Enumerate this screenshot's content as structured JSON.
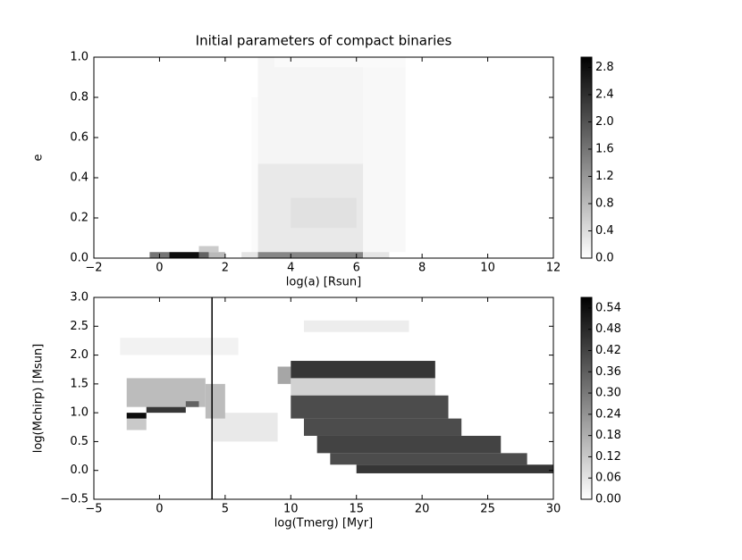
{
  "chart_data": [
    {
      "type": "heatmap",
      "title": "Initial parameters of compact binaries",
      "xlabel": "log(a) [Rsun]",
      "ylabel": "e",
      "xlim": [
        -2,
        12
      ],
      "ylim": [
        0,
        1
      ],
      "xticks": [
        {
          "value": -2,
          "label": "−2"
        },
        0,
        2,
        4,
        6,
        8,
        10,
        12
      ],
      "yticks": [
        {
          "value": 0,
          "label": "0.0"
        },
        0.2,
        0.4,
        0.6,
        0.8,
        {
          "value": 1,
          "label": "1.0"
        }
      ],
      "clim": [
        0,
        2.95
      ],
      "cticks": [
        {
          "value": 0,
          "label": "0.0"
        },
        0.4,
        0.8,
        1.2,
        1.6,
        {
          "value": 2,
          "label": "2.0"
        },
        2.4,
        2.8
      ],
      "cells": [
        {
          "x": [
            3,
            6.2
          ],
          "y": [
            0.47,
            1.0
          ],
          "v": 0.12
        },
        {
          "x": [
            6.2,
            7.5
          ],
          "y": [
            0.03,
            0.95
          ],
          "v": 0.08
        },
        {
          "x": [
            3.5,
            7.5
          ],
          "y": [
            0.95,
            1.0
          ],
          "v": 0.06
        },
        {
          "x": [
            2.8,
            3
          ],
          "y": [
            0.03,
            0.8
          ],
          "v": 0.05
        },
        {
          "x": [
            3,
            6.2
          ],
          "y": [
            0.03,
            0.47
          ],
          "v": 0.25
        },
        {
          "x": [
            4,
            6
          ],
          "y": [
            0.15,
            0.3
          ],
          "v": 0.35
        },
        {
          "x": [
            1.2,
            1.8
          ],
          "y": [
            0.03,
            0.06
          ],
          "v": 0.6
        },
        {
          "x": [
            -0.3,
            0.3
          ],
          "y": [
            0,
            0.03
          ],
          "v": 1.6
        },
        {
          "x": [
            0.3,
            1.2
          ],
          "y": [
            0,
            0.03
          ],
          "v": 2.8
        },
        {
          "x": [
            1.2,
            1.5
          ],
          "y": [
            0,
            0.03
          ],
          "v": 1.8
        },
        {
          "x": [
            1.5,
            2
          ],
          "y": [
            0,
            0.03
          ],
          "v": 0.8
        },
        {
          "x": [
            2.5,
            3
          ],
          "y": [
            0,
            0.03
          ],
          "v": 0.3
        },
        {
          "x": [
            3,
            6.2
          ],
          "y": [
            0,
            0.03
          ],
          "v": 1.4
        },
        {
          "x": [
            6.2,
            7
          ],
          "y": [
            0,
            0.03
          ],
          "v": 0.3
        }
      ]
    },
    {
      "type": "heatmap",
      "xlabel": "log(Tmerg) [Myr]",
      "ylabel": "log(Mchirp) [Msun]",
      "xlim": [
        -5,
        30
      ],
      "ylim": [
        -0.5,
        3
      ],
      "xticks": [
        {
          "value": -5,
          "label": "−5"
        },
        0,
        5,
        10,
        15,
        20,
        25,
        30
      ],
      "yticks": [
        {
          "value": -0.5,
          "label": "−0.5"
        },
        {
          "value": 0,
          "label": "0.0"
        },
        0.5,
        {
          "value": 1,
          "label": "1.0"
        },
        1.5,
        {
          "value": 2,
          "label": "2.0"
        },
        2.5,
        {
          "value": 3,
          "label": "3.0"
        }
      ],
      "clim": [
        0,
        0.57
      ],
      "cticks": [
        {
          "value": 0,
          "label": "0.00"
        },
        0.06,
        0.12,
        0.18,
        0.24,
        {
          "value": 0.3,
          "label": "0.30"
        },
        0.36,
        0.42,
        0.48,
        0.54
      ],
      "vline": 4,
      "cells": [
        {
          "x": [
            -3,
            6
          ],
          "y": [
            2.0,
            2.3
          ],
          "v": 0.03
        },
        {
          "x": [
            11,
            19
          ],
          "y": [
            2.4,
            2.6
          ],
          "v": 0.04
        },
        {
          "x": [
            4,
            9
          ],
          "y": [
            0.5,
            1.0
          ],
          "v": 0.05
        },
        {
          "x": [
            -2.5,
            3.5
          ],
          "y": [
            1.1,
            1.6
          ],
          "v": 0.15
        },
        {
          "x": [
            -2.5,
            -1
          ],
          "y": [
            0.7,
            0.9
          ],
          "v": 0.12
        },
        {
          "x": [
            3.5,
            5
          ],
          "y": [
            0.9,
            1.5
          ],
          "v": 0.15
        },
        {
          "x": [
            -2.5,
            -1
          ],
          "y": [
            0.9,
            1.0
          ],
          "v": 0.54
        },
        {
          "x": [
            -1,
            2
          ],
          "y": [
            1.0,
            1.1
          ],
          "v": 0.45
        },
        {
          "x": [
            2,
            3
          ],
          "y": [
            1.1,
            1.2
          ],
          "v": 0.35
        },
        {
          "x": [
            10,
            21
          ],
          "y": [
            1.3,
            1.6
          ],
          "v": 0.1
        },
        {
          "x": [
            9,
            10
          ],
          "y": [
            1.5,
            1.8
          ],
          "v": 0.2
        },
        {
          "x": [
            10,
            21
          ],
          "y": [
            1.6,
            1.9
          ],
          "v": 0.45
        },
        {
          "x": [
            10,
            22
          ],
          "y": [
            0.9,
            1.3
          ],
          "v": 0.4
        },
        {
          "x": [
            11,
            23
          ],
          "y": [
            0.6,
            0.9
          ],
          "v": 0.4
        },
        {
          "x": [
            12,
            26
          ],
          "y": [
            0.3,
            0.6
          ],
          "v": 0.42
        },
        {
          "x": [
            13,
            28
          ],
          "y": [
            0.1,
            0.3
          ],
          "v": 0.4
        },
        {
          "x": [
            15,
            30
          ],
          "y": [
            -0.05,
            0.1
          ],
          "v": 0.45
        }
      ]
    }
  ]
}
